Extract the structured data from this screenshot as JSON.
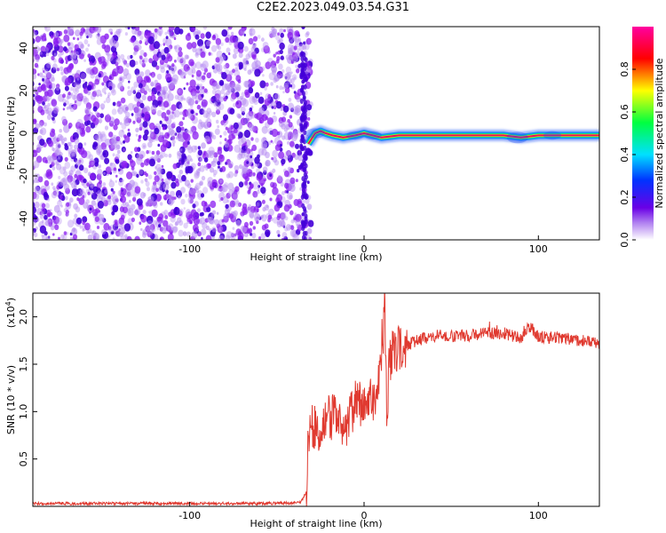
{
  "figure_title": "C2E2.2023.049.03.54.G31",
  "colors": {
    "spectrogram_low": "#8a1cf0",
    "spectrogram_dark": "#4400d8",
    "ridge_core": "#e01060",
    "ridge_glow": "#00dd88",
    "ridge_halo": "#3f6cf8",
    "snr_line": "#e03a30"
  },
  "chart_data": [
    {
      "type": "heatmap",
      "title": "C2E2.2023.049.03.54.G31",
      "xlabel": "Height of straight line (km)",
      "ylabel": "Frequency (Hz)",
      "xlim": [
        -190,
        135
      ],
      "ylim": [
        -50,
        50
      ],
      "xticks": [
        -100,
        0,
        100
      ],
      "xtick_labels": [
        "-100",
        "0",
        "100"
      ],
      "yticks": [
        -40,
        -20,
        0,
        20,
        40
      ],
      "ytick_labels": [
        "-40",
        "-20",
        "0",
        "20",
        "40"
      ],
      "colorbar": {
        "label": "Normalized spectral amplitude",
        "range": [
          0,
          1
        ],
        "ticks": [
          0.0,
          0.2,
          0.4,
          0.6,
          0.8
        ],
        "tick_labels": [
          "0.0",
          "0.2",
          "0.4",
          "0.6",
          "0.8"
        ],
        "colormap": [
          "#ffffff",
          "#6a00e6",
          "#0033ff",
          "#00e0ff",
          "#00ff40",
          "#ffff00",
          "#ff0000",
          "#ff00a0"
        ]
      },
      "noise_region_x": [
        -190,
        -32
      ],
      "ridge": {
        "x": [
          -32,
          -28,
          -25,
          -22,
          -18,
          -12,
          -5,
          0,
          5,
          10,
          20,
          40,
          60,
          80,
          90,
          100,
          110,
          120,
          135
        ],
        "frequency": [
          -5,
          0,
          1,
          0,
          -1,
          -2,
          -1,
          0,
          -1,
          -2,
          -1,
          -1,
          -1,
          -1,
          -2,
          -1,
          -1,
          -1,
          -1
        ],
        "amplitude": [
          0.55,
          0.65,
          0.75,
          0.9,
          0.85,
          0.8,
          0.8,
          0.85,
          0.85,
          0.9,
          0.92,
          0.95,
          0.95,
          0.95,
          0.95,
          0.97,
          0.98,
          0.98,
          0.98
        ]
      }
    },
    {
      "type": "line",
      "xlabel": "Height of straight line (km)",
      "ylabel": "SNR (10 * v/v)",
      "y_scale_label": "(x10^4)",
      "xlim": [
        -190,
        135
      ],
      "ylim": [
        0,
        22500
      ],
      "xticks": [
        -100,
        0,
        100
      ],
      "xtick_labels": [
        "-100",
        "0",
        "100"
      ],
      "yticks": [
        5000,
        10000,
        15000,
        20000
      ],
      "ytick_labels": [
        "0.5",
        "1.0",
        "1.5",
        "2.0"
      ],
      "series": [
        {
          "x": [
            -190,
            -150,
            -100,
            -60,
            -40,
            -36,
            -33,
            -32,
            -30,
            -25,
            -20,
            -15,
            -10,
            -5,
            0,
            5,
            8,
            10,
            12,
            13,
            14,
            16,
            20,
            25,
            30,
            40,
            50,
            60,
            70,
            80,
            85,
            90,
            95,
            100,
            110,
            120,
            130,
            135
          ],
          "y": [
            300,
            300,
            300,
            300,
            350,
            500,
            1500,
            7500,
            8500,
            8000,
            9200,
            9500,
            8500,
            11000,
            10500,
            11500,
            13000,
            14000,
            22500,
            6000,
            14500,
            16000,
            16500,
            17000,
            17500,
            18000,
            18000,
            18000,
            18200,
            18300,
            18000,
            17800,
            19000,
            17900,
            17800,
            17600,
            17400,
            17200
          ]
        }
      ]
    }
  ]
}
